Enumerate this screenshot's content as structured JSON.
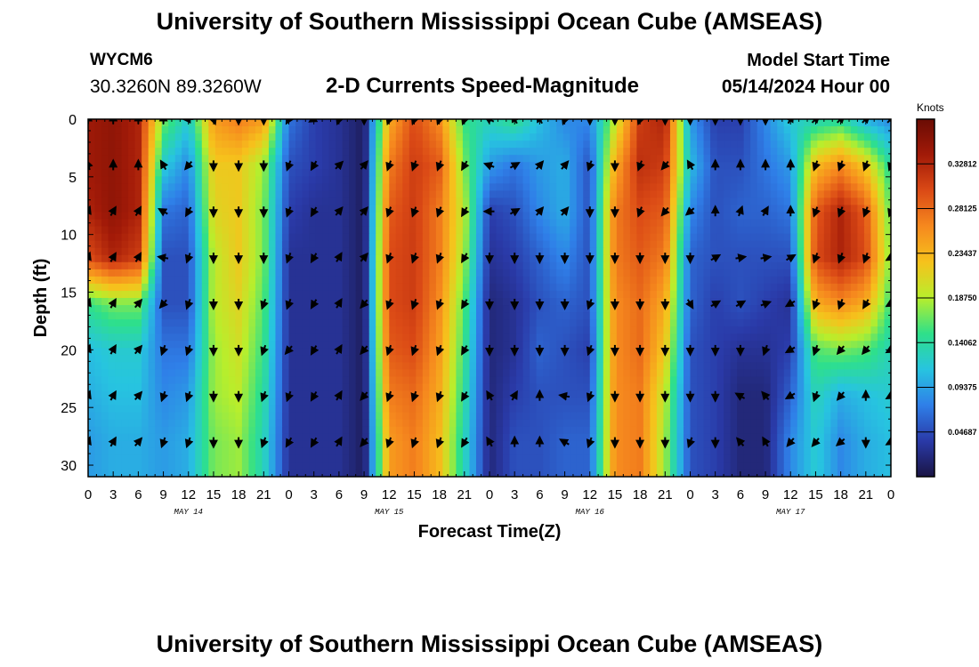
{
  "header": {
    "title": "University of Southern Mississippi Ocean Cube (AMSEAS)",
    "station_id": "WYCM6",
    "coords": "30.3260N  89.3260W",
    "chart_title": "2-D Currents Speed-Magnitude",
    "model_start_label": "Model Start Time",
    "model_start_value": "05/14/2024 Hour 00"
  },
  "footer": {
    "title": "University of Southern Mississippi Ocean Cube (AMSEAS)"
  },
  "chart_data": {
    "type": "heatmap",
    "title": "2-D Currents Speed-Magnitude",
    "xlabel": "Forecast Time(Z)",
    "ylabel": "Depth (ft)",
    "xlim": [
      0,
      96
    ],
    "ylim": [
      0,
      31
    ],
    "x_ticks": [
      0,
      3,
      6,
      9,
      12,
      15,
      18,
      21,
      24,
      27,
      30,
      33,
      36,
      39,
      42,
      45,
      48,
      51,
      54,
      57,
      60,
      63,
      66,
      69,
      72,
      75,
      78,
      81,
      84,
      87,
      90,
      93,
      96
    ],
    "x_tick_labels": [
      "0",
      "3",
      "6",
      "9",
      "12",
      "15",
      "18",
      "21",
      "0",
      "3",
      "6",
      "9",
      "12",
      "15",
      "18",
      "21",
      "0",
      "3",
      "6",
      "9",
      "12",
      "15",
      "18",
      "21",
      "0",
      "3",
      "6",
      "9",
      "12",
      "15",
      "18",
      "21",
      "0"
    ],
    "y_ticks": [
      0,
      5,
      10,
      15,
      20,
      25,
      30
    ],
    "y_tick_labels": [
      "0",
      "5",
      "10",
      "15",
      "20",
      "25",
      "30"
    ],
    "day_labels": [
      {
        "label": "MAY 14",
        "hour": 12
      },
      {
        "label": "MAY 15",
        "hour": 36
      },
      {
        "label": "MAY 16",
        "hour": 60
      },
      {
        "label": "MAY 17",
        "hour": 84
      }
    ],
    "colorbar": {
      "label": "Knots",
      "min": 0.0,
      "max": 0.375,
      "ticks": [
        0.04687,
        0.09375,
        0.14062,
        0.1875,
        0.23437,
        0.28125,
        0.32812
      ],
      "tick_labels": [
        "0.04687",
        "0.09375",
        "0.14062",
        "0.18750",
        "0.23437",
        "0.28125",
        "0.32812"
      ],
      "colors": [
        "#1a1444",
        "#2a3aa8",
        "#2f7fe8",
        "#27c4e0",
        "#2ee08a",
        "#b8ee2c",
        "#f6c21c",
        "#f6891e",
        "#db4a16",
        "#a21a08",
        "#6a0c04"
      ]
    },
    "time_hours": [
      0,
      3,
      6,
      9,
      12,
      15,
      18,
      21,
      24,
      27,
      30,
      33,
      36,
      39,
      42,
      45,
      48,
      51,
      54,
      57,
      60,
      63,
      66,
      69,
      72,
      75,
      78,
      81,
      84,
      87,
      90,
      93,
      96
    ],
    "depths_ft": [
      0,
      4,
      8,
      12,
      16,
      20,
      24,
      28,
      31
    ],
    "speed_knots": [
      [
        0.34,
        0.35,
        0.33,
        0.17,
        0.12,
        0.25,
        0.27,
        0.25,
        0.07,
        0.04,
        0.03,
        0.01,
        0.24,
        0.3,
        0.26,
        0.15,
        0.13,
        0.15,
        0.11,
        0.08,
        0.08,
        0.19,
        0.31,
        0.33,
        0.09,
        0.04,
        0.04,
        0.08,
        0.12,
        0.13,
        0.14,
        0.1,
        0.08
      ],
      [
        0.34,
        0.35,
        0.33,
        0.12,
        0.08,
        0.22,
        0.22,
        0.18,
        0.05,
        0.04,
        0.03,
        0.01,
        0.27,
        0.31,
        0.29,
        0.17,
        0.09,
        0.07,
        0.09,
        0.1,
        0.05,
        0.24,
        0.32,
        0.31,
        0.11,
        0.05,
        0.05,
        0.07,
        0.09,
        0.23,
        0.26,
        0.22,
        0.14
      ],
      [
        0.33,
        0.35,
        0.33,
        0.07,
        0.06,
        0.21,
        0.22,
        0.17,
        0.04,
        0.03,
        0.03,
        0.01,
        0.29,
        0.31,
        0.27,
        0.19,
        0.04,
        0.05,
        0.08,
        0.1,
        0.05,
        0.27,
        0.3,
        0.29,
        0.08,
        0.05,
        0.06,
        0.06,
        0.07,
        0.29,
        0.33,
        0.29,
        0.16
      ],
      [
        0.3,
        0.33,
        0.31,
        0.05,
        0.05,
        0.19,
        0.22,
        0.17,
        0.03,
        0.03,
        0.03,
        0.01,
        0.3,
        0.31,
        0.27,
        0.18,
        0.03,
        0.04,
        0.06,
        0.08,
        0.05,
        0.27,
        0.29,
        0.27,
        0.06,
        0.05,
        0.05,
        0.05,
        0.05,
        0.3,
        0.33,
        0.3,
        0.17
      ],
      [
        0.15,
        0.17,
        0.17,
        0.05,
        0.05,
        0.19,
        0.21,
        0.16,
        0.03,
        0.03,
        0.03,
        0.01,
        0.3,
        0.31,
        0.26,
        0.16,
        0.02,
        0.03,
        0.05,
        0.06,
        0.05,
        0.26,
        0.28,
        0.24,
        0.06,
        0.04,
        0.05,
        0.04,
        0.03,
        0.24,
        0.26,
        0.24,
        0.15
      ],
      [
        0.11,
        0.12,
        0.12,
        0.07,
        0.07,
        0.18,
        0.2,
        0.15,
        0.03,
        0.03,
        0.03,
        0.01,
        0.29,
        0.3,
        0.25,
        0.15,
        0.02,
        0.03,
        0.06,
        0.05,
        0.04,
        0.26,
        0.28,
        0.22,
        0.05,
        0.04,
        0.03,
        0.03,
        0.04,
        0.16,
        0.17,
        0.16,
        0.13
      ],
      [
        0.1,
        0.11,
        0.11,
        0.08,
        0.09,
        0.18,
        0.19,
        0.14,
        0.03,
        0.03,
        0.03,
        0.01,
        0.27,
        0.28,
        0.24,
        0.14,
        0.02,
        0.04,
        0.05,
        0.05,
        0.05,
        0.26,
        0.27,
        0.19,
        0.05,
        0.04,
        0.02,
        0.02,
        0.06,
        0.13,
        0.1,
        0.11,
        0.12
      ],
      [
        0.09,
        0.1,
        0.1,
        0.09,
        0.1,
        0.17,
        0.18,
        0.13,
        0.03,
        0.03,
        0.03,
        0.01,
        0.25,
        0.27,
        0.23,
        0.13,
        0.02,
        0.05,
        0.05,
        0.06,
        0.06,
        0.26,
        0.27,
        0.18,
        0.05,
        0.04,
        0.02,
        0.02,
        0.08,
        0.12,
        0.08,
        0.1,
        0.11
      ],
      [
        0.09,
        0.1,
        0.1,
        0.09,
        0.1,
        0.17,
        0.18,
        0.13,
        0.03,
        0.03,
        0.03,
        0.01,
        0.25,
        0.27,
        0.23,
        0.13,
        0.02,
        0.05,
        0.05,
        0.06,
        0.06,
        0.26,
        0.27,
        0.18,
        0.05,
        0.04,
        0.02,
        0.02,
        0.08,
        0.12,
        0.08,
        0.1,
        0.11
      ]
    ],
    "direction_deg": [
      [
        0,
        0,
        0,
        0,
        270,
        160,
        180,
        180,
        210,
        240,
        200,
        180,
        200,
        200,
        200,
        200,
        300,
        330,
        330,
        200,
        180,
        180,
        200,
        180,
        180,
        180,
        180,
        180,
        30,
        45,
        45,
        45,
        45
      ],
      [
        340,
        0,
        0,
        330,
        220,
        180,
        180,
        180,
        200,
        210,
        45,
        40,
        200,
        200,
        200,
        210,
        290,
        60,
        40,
        40,
        200,
        180,
        200,
        220,
        330,
        0,
        0,
        0,
        0,
        200,
        200,
        200,
        200
      ],
      [
        20,
        30,
        30,
        300,
        210,
        180,
        180,
        180,
        200,
        210,
        40,
        40,
        200,
        200,
        200,
        210,
        270,
        60,
        40,
        40,
        180,
        180,
        200,
        220,
        230,
        0,
        20,
        30,
        0,
        200,
        200,
        200,
        200
      ],
      [
        20,
        30,
        30,
        280,
        200,
        180,
        180,
        180,
        200,
        210,
        30,
        40,
        200,
        200,
        200,
        210,
        180,
        180,
        180,
        180,
        180,
        180,
        180,
        180,
        180,
        60,
        80,
        80,
        60,
        200,
        200,
        200,
        240
      ],
      [
        20,
        30,
        40,
        220,
        200,
        180,
        180,
        200,
        200,
        210,
        30,
        220,
        200,
        200,
        200,
        210,
        180,
        180,
        180,
        180,
        200,
        180,
        180,
        180,
        150,
        60,
        60,
        70,
        240,
        200,
        200,
        210,
        240
      ],
      [
        20,
        30,
        40,
        200,
        200,
        180,
        180,
        200,
        220,
        210,
        30,
        220,
        200,
        200,
        200,
        210,
        180,
        180,
        180,
        180,
        200,
        180,
        180,
        180,
        180,
        180,
        180,
        200,
        240,
        200,
        220,
        220,
        240
      ],
      [
        20,
        30,
        40,
        200,
        200,
        180,
        180,
        200,
        200,
        210,
        30,
        220,
        200,
        200,
        200,
        210,
        330,
        30,
        0,
        280,
        200,
        180,
        180,
        180,
        180,
        180,
        300,
        320,
        240,
        200,
        220,
        0,
        240
      ],
      [
        20,
        30,
        40,
        200,
        200,
        180,
        180,
        200,
        210,
        210,
        30,
        220,
        200,
        200,
        200,
        210,
        330,
        0,
        0,
        300,
        200,
        180,
        180,
        180,
        200,
        180,
        320,
        330,
        220,
        220,
        230,
        180,
        240
      ],
      [
        20,
        30,
        40,
        200,
        200,
        180,
        180,
        200,
        210,
        210,
        30,
        220,
        200,
        200,
        200,
        210,
        330,
        0,
        0,
        300,
        200,
        180,
        180,
        180,
        200,
        180,
        320,
        330,
        220,
        220,
        230,
        180,
        240
      ]
    ]
  }
}
